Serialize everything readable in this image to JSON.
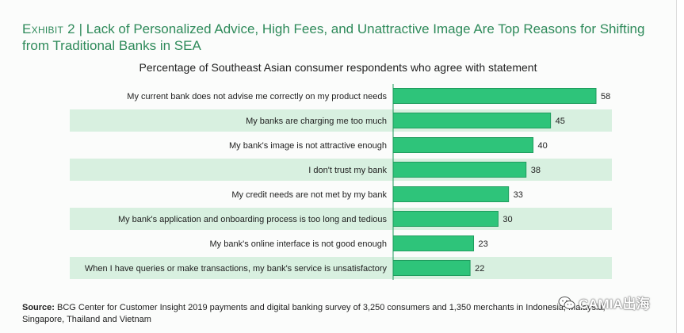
{
  "header": {
    "exhibit": "Exhibit 2",
    "separator": "|",
    "title": "Lack of Personalized Advice, High Fees, and Unattractive Image Are Top Reasons for Shifting from Traditional Banks in SEA",
    "subtitle": "Percentage of Southeast Asian consumer respondents who agree with statement"
  },
  "colors": {
    "bar": "#2ec47a",
    "bar_border": "#1f9d5e",
    "band": "#d8f0e0",
    "title": "#2e8a5a"
  },
  "chart_data": {
    "type": "bar",
    "orientation": "horizontal",
    "title": "Percentage of Southeast Asian consumer respondents who agree with statement",
    "categories": [
      "My current bank does not advise me correctly on my product needs",
      "My banks are charging me too much",
      "My bank's image is not attractive enough",
      "I don't trust my bank",
      "My credit needs are not met by my bank",
      "My bank's application and onboarding process is too long and tedious",
      "My bank's online interface is not good enough",
      "When I have queries or make transactions, my bank's service is unsatisfactory"
    ],
    "values": [
      58,
      45,
      40,
      38,
      33,
      30,
      23,
      22
    ],
    "xlim": [
      0,
      58
    ],
    "grid": false,
    "data_labels": true
  },
  "source": {
    "label": "Source:",
    "text": "BCG Center for Customer Insight 2019 payments and digital banking survey of 3,250 consumers and 1,350 merchants in Indonesia, Malaysia, Singapore, Thailand and Vietnam"
  },
  "watermark": {
    "text": "CAMIA出海",
    "icon": "wechat-icon"
  }
}
